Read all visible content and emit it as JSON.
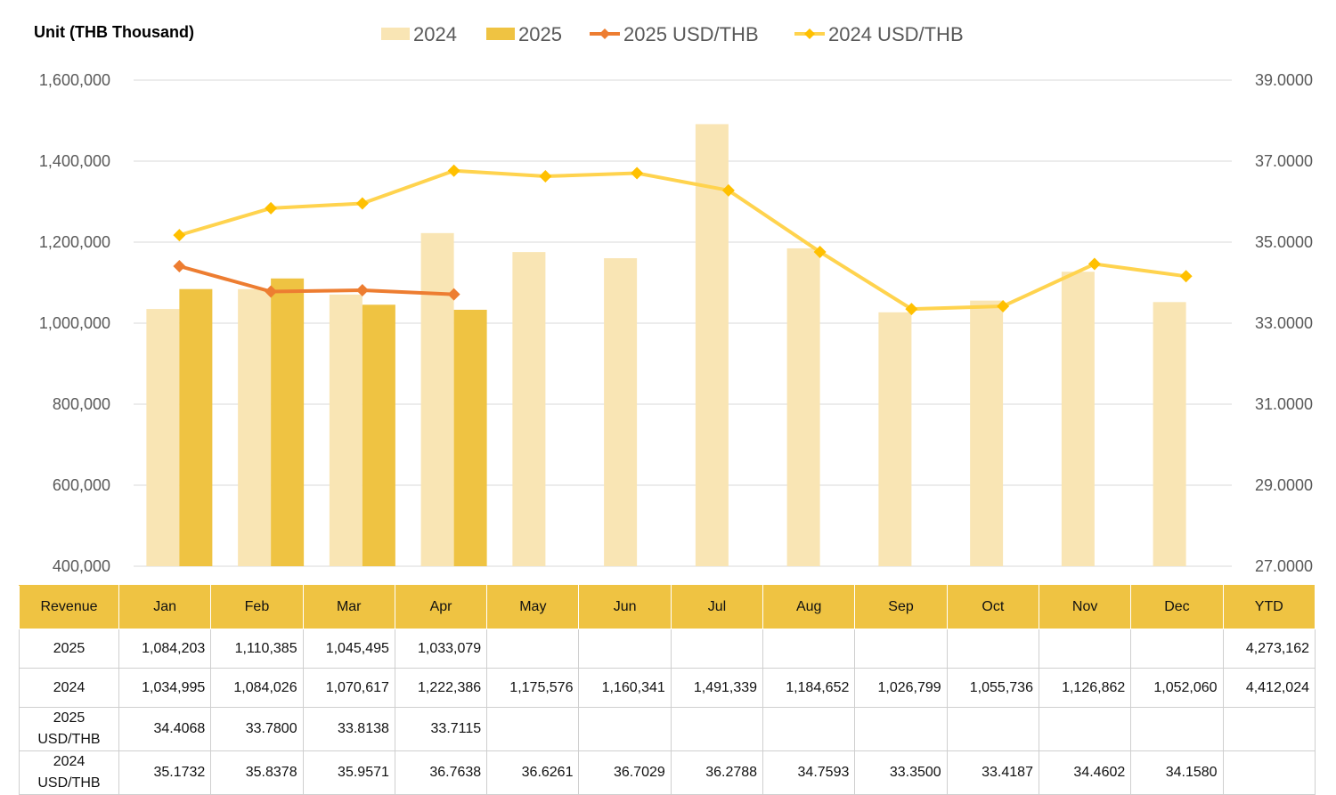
{
  "unit_label": "Unit (THB  Thousand)",
  "legend": [
    {
      "label": "2024",
      "kind": "bar",
      "color": "#F9E5B4"
    },
    {
      "label": "2025",
      "kind": "bar",
      "color": "#EFC342"
    },
    {
      "label": "2025 USD/THB",
      "kind": "line",
      "color": "#ED7D31"
    },
    {
      "label": "2024 USD/THB",
      "kind": "line",
      "color": "#FFD34E",
      "marker": "#FFC000"
    }
  ],
  "chart_data": {
    "type": "bar",
    "categories": [
      "Jan",
      "Feb",
      "Mar",
      "Apr",
      "May",
      "Jun",
      "Jul",
      "Aug",
      "Sep",
      "Oct",
      "Nov",
      "Dec"
    ],
    "series": [
      {
        "name": "2024",
        "type": "bar",
        "axis": "left",
        "color": "#F9E5B4",
        "values": [
          1034995,
          1084026,
          1070617,
          1222386,
          1175576,
          1160341,
          1491339,
          1184652,
          1026799,
          1055736,
          1126862,
          1052060
        ]
      },
      {
        "name": "2025",
        "type": "bar",
        "axis": "left",
        "color": "#EFC342",
        "values": [
          1084203,
          1110385,
          1045495,
          1033079,
          null,
          null,
          null,
          null,
          null,
          null,
          null,
          null
        ]
      },
      {
        "name": "2025 USD/THB",
        "type": "line",
        "axis": "right",
        "color": "#ED7D31",
        "values": [
          34.4068,
          33.78,
          33.8138,
          33.7115,
          null,
          null,
          null,
          null,
          null,
          null,
          null,
          null
        ]
      },
      {
        "name": "2024 USD/THB",
        "type": "line",
        "axis": "right",
        "color": "#FFD34E",
        "values": [
          35.1732,
          35.8378,
          35.9571,
          36.7638,
          36.6261,
          36.7029,
          36.2788,
          34.7593,
          33.35,
          33.4187,
          34.4602,
          34.158
        ]
      }
    ],
    "ylim": [
      400000,
      1600000
    ],
    "y_ticks": [
      "1,600,000",
      "1,400,000",
      "1,200,000",
      "1,000,000",
      "800,000",
      "600,000",
      "400,000"
    ],
    "y2lim": [
      27,
      39
    ],
    "y2_ticks": [
      "39.0000",
      "37.0000",
      "35.0000",
      "33.0000",
      "31.0000",
      "29.0000",
      "27.0000"
    ],
    "grid": true,
    "legend_position": "top"
  },
  "table": {
    "headers": [
      "Revenue",
      "Jan",
      "Feb",
      "Mar",
      "Apr",
      "May",
      "Jun",
      "Jul",
      "Aug",
      "Sep",
      "Oct",
      "Nov",
      "Dec",
      "YTD"
    ],
    "rows": [
      {
        "label": "2025",
        "cells": [
          "1,084,203",
          "1,110,385",
          "1,045,495",
          "1,033,079",
          "",
          "",
          "",
          "",
          "",
          "",
          "",
          "",
          "4,273,162"
        ]
      },
      {
        "label": "2024",
        "cells": [
          "1,034,995",
          "1,084,026",
          "1,070,617",
          "1,222,386",
          "1,175,576",
          "1,160,341",
          "1,491,339",
          "1,184,652",
          "1,026,799",
          "1,055,736",
          "1,126,862",
          "1,052,060",
          "4,412,024"
        ]
      },
      {
        "label": "2025\nUSD/THB",
        "cells": [
          "34.4068",
          "33.7800",
          "33.8138",
          "33.7115",
          "",
          "",
          "",
          "",
          "",
          "",
          "",
          "",
          ""
        ]
      },
      {
        "label": "2024\nUSD/THB",
        "cells": [
          "35.1732",
          "35.8378",
          "35.9571",
          "36.7638",
          "36.6261",
          "36.7029",
          "36.2788",
          "34.7593",
          "33.3500",
          "33.4187",
          "34.4602",
          "34.1580",
          ""
        ]
      }
    ]
  }
}
